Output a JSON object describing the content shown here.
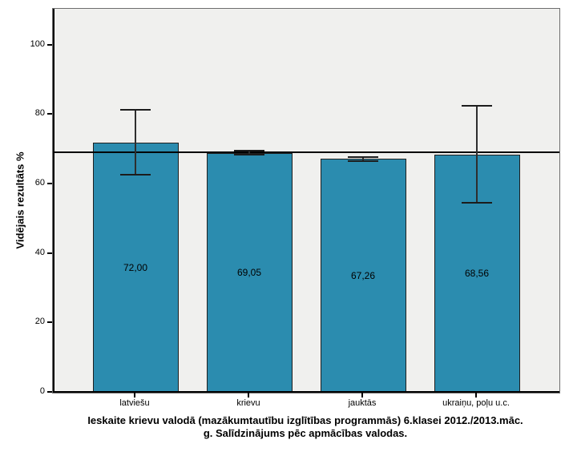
{
  "figure": {
    "background": "#ffffff",
    "plot_background": "#f0f0ee",
    "frame_color": "#6e6e6e"
  },
  "chart_data": {
    "type": "bar",
    "title": "Ieskaite krievu valodā (mazākumtautību izglītības programmās) 6.klasei 2012./2013.māc. g. Salīdzinājums pēc apmācības valodas.",
    "title_lines": [
      "Ieskaite krievu valodā (mazākumtautību izglītības programmās) 6.klasei 2012./2013.māc.",
      "g. Salīdzinājums pēc apmācības valodas."
    ],
    "xlabel": "",
    "ylabel": "Vidējais rezultāts %",
    "categories": [
      "latviešu",
      "krievu",
      "jauktās",
      "ukraiņu, poļu u.c."
    ],
    "values": [
      72.0,
      69.05,
      67.26,
      68.56
    ],
    "value_labels": [
      "72,00",
      "69,05",
      "67,26",
      "68,56"
    ],
    "error_bars": [
      {
        "low": 62.8,
        "high": 81.4
      },
      {
        "low": 68.4,
        "high": 69.7
      },
      {
        "low": 66.6,
        "high": 67.9
      },
      {
        "low": 54.6,
        "high": 82.7
      }
    ],
    "reference_line": 69.3,
    "y_ticks": [
      0,
      20,
      40,
      60,
      80,
      100
    ],
    "y_tick_labels": [
      "0",
      "20",
      "40",
      "60",
      "80",
      "100"
    ],
    "ylim": [
      0,
      110.5
    ],
    "bar_color": "#2b8caf",
    "bar_border_color": "#1f1f1f",
    "error_bar_color": "#2e2e2e",
    "reference_line_color": "#000000",
    "grid": false,
    "legend": "none"
  }
}
